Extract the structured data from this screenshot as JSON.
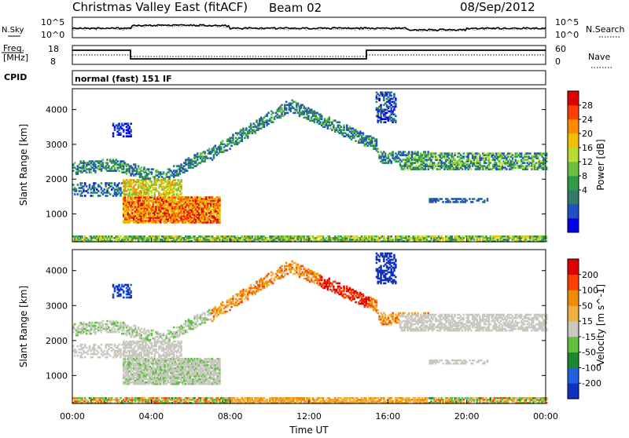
{
  "header": {
    "station": "Christmas Valley East (fitACF)",
    "beam": "Beam 02",
    "date": "08/Sep/2012"
  },
  "top_panels": {
    "nsky_label": "N.Sky",
    "nsearch_label": "N.Search",
    "nsky_ticks": [
      "10^5",
      "10^0"
    ],
    "nsearch_ticks": [
      "10^5",
      "10^0"
    ],
    "freq_label_1": "Freq.",
    "freq_label_2": "[MHz]",
    "freq_ticks": [
      "18",
      "8"
    ],
    "nave_label": "Nave",
    "nave_ticks": [
      "60",
      "0"
    ],
    "cpid_label": "CPID",
    "cpid_value": "normal (fast) 151 IF"
  },
  "chart_data": [
    {
      "type": "heatmap",
      "name": "power",
      "ylabel": "Slant Range [km]",
      "ylim": [
        200,
        4600
      ],
      "yticks": [
        1000,
        2000,
        3000,
        4000
      ],
      "colorbar_label": "Power [dB]",
      "colorbar_ticks": [
        "28",
        "24",
        "20",
        "16",
        "12",
        "8",
        "4"
      ],
      "colorbar_colors": [
        "#0000e8",
        "#2250c0",
        "#337a6a",
        "#2e9a4a",
        "#6cc040",
        "#b8dc30",
        "#f0c000",
        "#ff8c00",
        "#ff4000",
        "#e00000"
      ]
    },
    {
      "type": "heatmap",
      "name": "velocity",
      "xlabel": "Time UT",
      "xticks": [
        "00:00",
        "04:00",
        "08:00",
        "12:00",
        "16:00",
        "20:00",
        "00:00"
      ],
      "ylabel": "Slant Range [km]",
      "ylim": [
        200,
        4600
      ],
      "yticks": [
        1000,
        2000,
        3000,
        4000
      ],
      "colorbar_label": "Velocity [m s^-1]",
      "colorbar_ticks": [
        "200",
        "100",
        "50",
        "15",
        "-15",
        "-50",
        "-100",
        "-200"
      ],
      "colorbar_colors": [
        "#1030c0",
        "#2060e0",
        "#1a8a30",
        "#60c040",
        "#c8c8c0",
        "#f0b040",
        "#f08c00",
        "#ff4000",
        "#e00000"
      ]
    }
  ]
}
